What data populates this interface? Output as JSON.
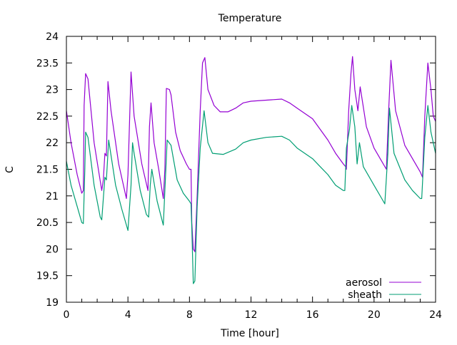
{
  "chart_data": {
    "type": "line",
    "title": "Temperature",
    "xlabel": "Time [hour]",
    "ylabel": "C",
    "xlim": [
      0,
      24
    ],
    "ylim": [
      19,
      24
    ],
    "xticks": [
      0,
      4,
      8,
      12,
      16,
      20,
      24
    ],
    "yticks": [
      19,
      19.5,
      20,
      20.5,
      21,
      21.5,
      22,
      22.5,
      23,
      23.5,
      24
    ],
    "ytick_labels": [
      "19",
      "19.5",
      "20",
      "20.5",
      "21",
      "21.5",
      "22",
      "22.5",
      "23",
      "23.5",
      "24"
    ],
    "grid": false,
    "legend_position": "bottom-right",
    "series": [
      {
        "name": "aerosol",
        "color": "#9400d3",
        "points": [
          [
            0,
            22.6
          ],
          [
            0.3,
            22.0
          ],
          [
            0.7,
            21.4
          ],
          [
            1.0,
            21.05
          ],
          [
            1.1,
            21.1
          ],
          [
            1.15,
            22.7
          ],
          [
            1.25,
            23.3
          ],
          [
            1.4,
            23.2
          ],
          [
            1.8,
            22.0
          ],
          [
            2.3,
            21.1
          ],
          [
            2.4,
            21.3
          ],
          [
            2.5,
            21.8
          ],
          [
            2.6,
            21.75
          ],
          [
            2.7,
            23.15
          ],
          [
            2.9,
            22.6
          ],
          [
            3.4,
            21.6
          ],
          [
            3.9,
            20.95
          ],
          [
            4.0,
            21.4
          ],
          [
            4.2,
            23.33
          ],
          [
            4.4,
            22.5
          ],
          [
            4.9,
            21.6
          ],
          [
            5.3,
            21.1
          ],
          [
            5.4,
            22.3
          ],
          [
            5.5,
            22.75
          ],
          [
            5.7,
            22.0
          ],
          [
            6.0,
            21.5
          ],
          [
            6.3,
            20.95
          ],
          [
            6.4,
            21.5
          ],
          [
            6.5,
            23.02
          ],
          [
            6.7,
            23.0
          ],
          [
            6.8,
            22.9
          ],
          [
            7.1,
            22.2
          ],
          [
            7.4,
            21.85
          ],
          [
            7.8,
            21.6
          ],
          [
            8.0,
            21.5
          ],
          [
            8.1,
            21.5
          ],
          [
            8.15,
            20.5
          ],
          [
            8.25,
            20.0
          ],
          [
            8.35,
            19.95
          ],
          [
            8.5,
            21.0
          ],
          [
            8.7,
            22.6
          ],
          [
            8.85,
            23.5
          ],
          [
            9.0,
            23.6
          ],
          [
            9.2,
            23.0
          ],
          [
            9.6,
            22.7
          ],
          [
            10.0,
            22.58
          ],
          [
            10.5,
            22.58
          ],
          [
            11.0,
            22.65
          ],
          [
            11.5,
            22.75
          ],
          [
            12.0,
            22.78
          ],
          [
            13.0,
            22.8
          ],
          [
            14.0,
            22.82
          ],
          [
            14.5,
            22.75
          ],
          [
            15.0,
            22.65
          ],
          [
            16.0,
            22.45
          ],
          [
            16.5,
            22.25
          ],
          [
            17.0,
            22.05
          ],
          [
            17.5,
            21.8
          ],
          [
            18.0,
            21.6
          ],
          [
            18.15,
            21.55
          ],
          [
            18.2,
            21.5
          ],
          [
            18.35,
            22.6
          ],
          [
            18.5,
            23.3
          ],
          [
            18.6,
            23.62
          ],
          [
            18.75,
            23.0
          ],
          [
            18.85,
            22.8
          ],
          [
            18.95,
            22.6
          ],
          [
            19.1,
            23.05
          ],
          [
            19.5,
            22.3
          ],
          [
            20.0,
            21.9
          ],
          [
            20.5,
            21.65
          ],
          [
            20.8,
            21.5
          ],
          [
            20.95,
            22.6
          ],
          [
            21.1,
            23.55
          ],
          [
            21.4,
            22.6
          ],
          [
            22.0,
            21.95
          ],
          [
            22.5,
            21.7
          ],
          [
            23.0,
            21.45
          ],
          [
            23.15,
            21.35
          ],
          [
            23.3,
            22.5
          ],
          [
            23.5,
            23.5
          ],
          [
            23.7,
            23.0
          ],
          [
            23.85,
            22.5
          ],
          [
            24.0,
            22.4
          ]
        ]
      },
      {
        "name": "sheath",
        "color": "#009e73",
        "points": [
          [
            0,
            21.65
          ],
          [
            0.3,
            21.2
          ],
          [
            0.7,
            20.8
          ],
          [
            1.0,
            20.5
          ],
          [
            1.1,
            20.48
          ],
          [
            1.2,
            21.5
          ],
          [
            1.25,
            22.2
          ],
          [
            1.4,
            22.1
          ],
          [
            1.8,
            21.2
          ],
          [
            2.2,
            20.6
          ],
          [
            2.3,
            20.55
          ],
          [
            2.5,
            21.35
          ],
          [
            2.6,
            21.3
          ],
          [
            2.75,
            22.05
          ],
          [
            3.2,
            21.2
          ],
          [
            3.6,
            20.75
          ],
          [
            4.0,
            20.35
          ],
          [
            4.2,
            21.2
          ],
          [
            4.3,
            22.0
          ],
          [
            4.4,
            21.8
          ],
          [
            4.8,
            21.1
          ],
          [
            5.2,
            20.65
          ],
          [
            5.35,
            20.6
          ],
          [
            5.45,
            21.2
          ],
          [
            5.55,
            21.5
          ],
          [
            5.9,
            20.9
          ],
          [
            6.3,
            20.45
          ],
          [
            6.45,
            21.4
          ],
          [
            6.55,
            22.05
          ],
          [
            6.8,
            21.95
          ],
          [
            7.2,
            21.3
          ],
          [
            7.6,
            21.05
          ],
          [
            8.0,
            20.9
          ],
          [
            8.1,
            20.85
          ],
          [
            8.15,
            20.4
          ],
          [
            8.25,
            19.35
          ],
          [
            8.35,
            19.4
          ],
          [
            8.5,
            20.8
          ],
          [
            8.7,
            21.9
          ],
          [
            8.95,
            22.6
          ],
          [
            9.2,
            22.0
          ],
          [
            9.5,
            21.8
          ],
          [
            10.2,
            21.78
          ],
          [
            11.0,
            21.88
          ],
          [
            11.5,
            22.0
          ],
          [
            12.0,
            22.05
          ],
          [
            13.0,
            22.1
          ],
          [
            14.0,
            22.12
          ],
          [
            14.5,
            22.05
          ],
          [
            15.0,
            21.9
          ],
          [
            16.0,
            21.7
          ],
          [
            16.5,
            21.55
          ],
          [
            17.0,
            21.4
          ],
          [
            17.5,
            21.2
          ],
          [
            18.0,
            21.1
          ],
          [
            18.1,
            21.1
          ],
          [
            18.2,
            21.9
          ],
          [
            18.4,
            22.25
          ],
          [
            18.55,
            22.7
          ],
          [
            18.75,
            22.3
          ],
          [
            18.9,
            21.6
          ],
          [
            19.05,
            22.0
          ],
          [
            19.3,
            21.55
          ],
          [
            20.0,
            21.2
          ],
          [
            20.5,
            20.95
          ],
          [
            20.7,
            20.85
          ],
          [
            20.9,
            21.8
          ],
          [
            21.0,
            22.65
          ],
          [
            21.3,
            21.8
          ],
          [
            22.0,
            21.3
          ],
          [
            22.5,
            21.1
          ],
          [
            23.0,
            20.95
          ],
          [
            23.1,
            20.95
          ],
          [
            23.3,
            22.1
          ],
          [
            23.5,
            22.7
          ],
          [
            23.7,
            22.2
          ],
          [
            24.0,
            21.8
          ]
        ]
      }
    ]
  }
}
